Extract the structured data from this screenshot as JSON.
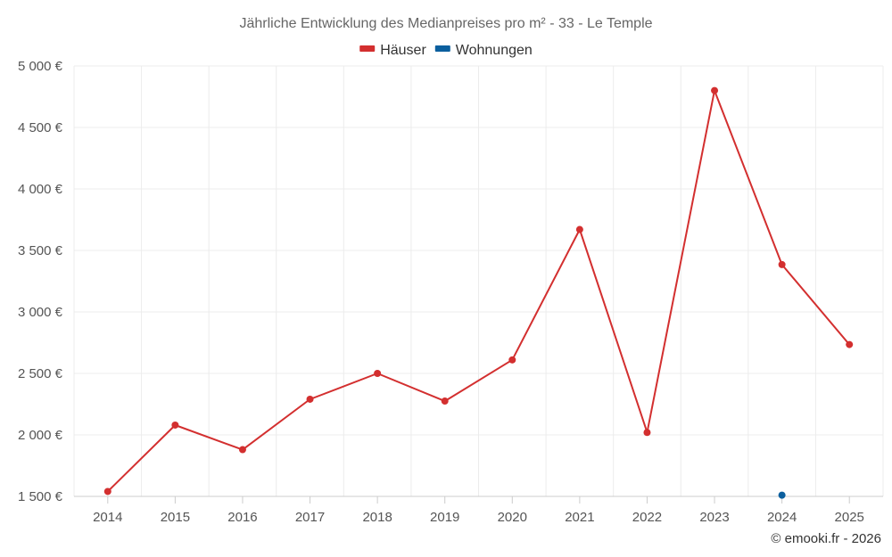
{
  "chart_data": {
    "type": "line",
    "title": "Jährliche Entwicklung des Medianpreises pro m² - 33 - Le Temple",
    "categories": [
      "2014",
      "2015",
      "2016",
      "2017",
      "2018",
      "2019",
      "2020",
      "2021",
      "2022",
      "2023",
      "2024",
      "2025"
    ],
    "series": [
      {
        "name": "Häuser",
        "color": "#d32f2f",
        "values": [
          1540,
          2080,
          1880,
          2290,
          2500,
          2275,
          2610,
          3670,
          2020,
          4800,
          3385,
          2735
        ]
      },
      {
        "name": "Wohnungen",
        "color": "#0b5f9e",
        "values": [
          null,
          null,
          null,
          null,
          null,
          null,
          null,
          null,
          null,
          null,
          1510,
          null
        ]
      }
    ],
    "ylim": [
      1500,
      5000
    ],
    "yticks": [
      1500,
      2000,
      2500,
      3000,
      3500,
      4000,
      4500,
      5000
    ],
    "ytick_labels": [
      "1 500 €",
      "2 000 €",
      "2 500 €",
      "3 000 €",
      "3 500 €",
      "4 000 €",
      "4 500 €",
      "5 000 €"
    ],
    "xlabel": "",
    "ylabel": "",
    "grid": true,
    "legend_position": "top-center"
  },
  "credit": "© emooki.fr - 2026"
}
